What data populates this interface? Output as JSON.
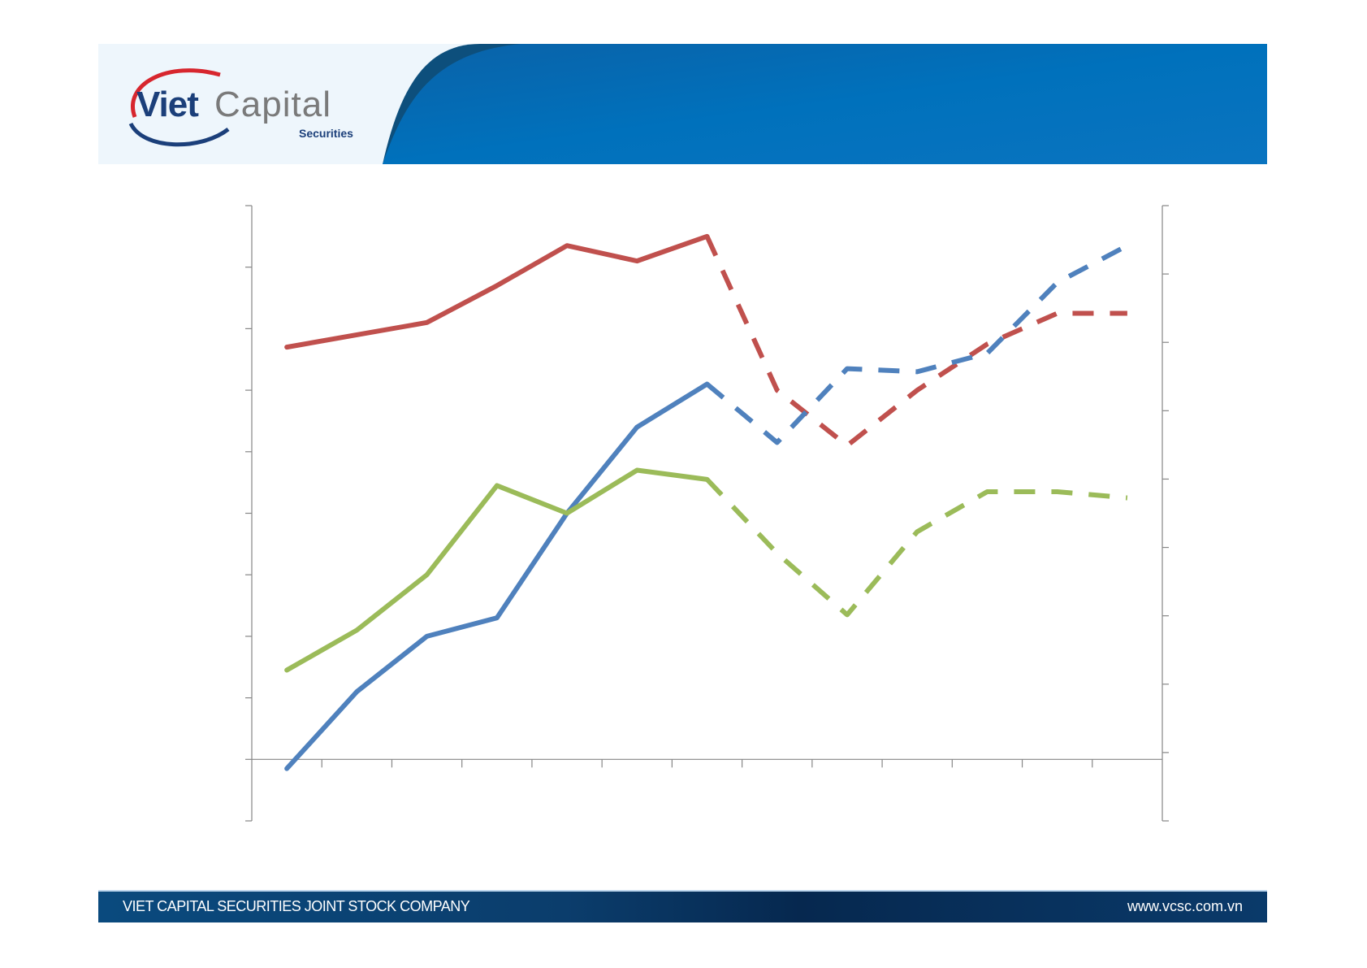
{
  "header": {
    "logo_main": "Viet",
    "logo_second": "Capital",
    "logo_sub": "Securities"
  },
  "footer": {
    "company": "VIET CAPITAL SECURITIES JOINT STOCK COMPANY",
    "url": "www.vcsc.com.vn"
  },
  "colors": {
    "brand_blue": "#0070b8",
    "footer_navy": "#0b3d6c"
  },
  "chart_data": {
    "type": "line",
    "title": "",
    "xlabel": "",
    "ylabel": "",
    "x": [
      1,
      2,
      3,
      4,
      5,
      6,
      7,
      8,
      9,
      10,
      11,
      12,
      13
    ],
    "ylim": [
      -1,
      9
    ],
    "secondary_axis": true,
    "grid": false,
    "legend": "none",
    "solid_until_index": 6,
    "series": [
      {
        "color": "#c0504d",
        "values": [
          6.7,
          6.9,
          7.1,
          7.7,
          8.35,
          8.1,
          8.5,
          6.0,
          5.1,
          6.0,
          6.75,
          7.25,
          7.25
        ]
      },
      {
        "color": "#4f81bd",
        "values": [
          -0.15,
          1.1,
          2.0,
          2.3,
          4.0,
          5.4,
          6.1,
          5.15,
          6.35,
          6.3,
          6.6,
          7.75,
          8.35
        ]
      },
      {
        "color": "#9bbb59",
        "values": [
          1.45,
          2.1,
          3.0,
          4.45,
          4.0,
          4.7,
          4.55,
          3.35,
          2.35,
          3.7,
          4.35,
          4.35,
          4.25
        ]
      }
    ]
  }
}
